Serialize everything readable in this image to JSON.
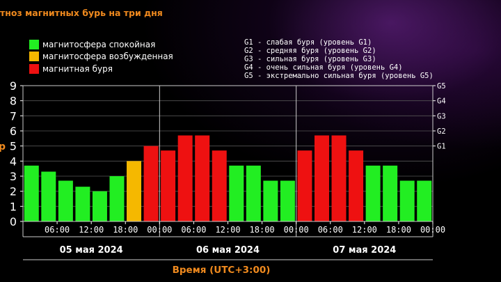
{
  "title": "тноз магнитных бурь на три дня",
  "ylabel_visible": "p",
  "legend": [
    {
      "label": "магнитосфера спокойная",
      "color": "#22ee22"
    },
    {
      "label": "магнитосфера возбужденная",
      "color": "#f5b800"
    },
    {
      "label": "магнитная буря",
      "color": "#ee1111"
    }
  ],
  "storm_levels": [
    "G1 - слабая буря (уровень G1)",
    "G2 - средняя буря (уровень G2)",
    "G3 - сильная буря (уровень G3)",
    "G4 - очень сильная буря (уровень G4)",
    "G5 - экстремально сильная буря (уровень G5)"
  ],
  "xlabel": "Время (UTC+3:00)",
  "chart_data": {
    "type": "bar",
    "ylim": [
      0,
      9
    ],
    "yticks": [
      "0",
      "1",
      "2",
      "3",
      "4",
      "5",
      "6",
      "7",
      "8",
      "9"
    ],
    "right_ticks": [
      {
        "label": "G1",
        "value": 5
      },
      {
        "label": "G2",
        "value": 6
      },
      {
        "label": "G3",
        "value": 7
      },
      {
        "label": "G4",
        "value": 8
      },
      {
        "label": "G5",
        "value": 9
      }
    ],
    "days": [
      "05 мая 2024",
      "06 мая 2024",
      "07 мая 2024"
    ],
    "time_labels": [
      "06:00",
      "12:00",
      "18:00",
      "00:00"
    ],
    "grid": true,
    "values": [
      [
        3.7,
        3.3,
        2.7,
        2.3,
        2.0,
        3.0,
        4.0,
        5.0
      ],
      [
        4.7,
        5.7,
        5.7,
        4.7,
        3.7,
        3.7,
        2.7,
        2.7
      ],
      [
        4.7,
        5.7,
        5.7,
        4.7,
        3.7,
        3.7,
        2.7,
        2.7
      ]
    ],
    "colors": [
      [
        "#22ee22",
        "#22ee22",
        "#22ee22",
        "#22ee22",
        "#22ee22",
        "#22ee22",
        "#f5b800",
        "#ee1111"
      ],
      [
        "#ee1111",
        "#ee1111",
        "#ee1111",
        "#ee1111",
        "#22ee22",
        "#22ee22",
        "#22ee22",
        "#22ee22"
      ],
      [
        "#ee1111",
        "#ee1111",
        "#ee1111",
        "#ee1111",
        "#22ee22",
        "#22ee22",
        "#22ee22",
        "#22ee22"
      ]
    ]
  }
}
